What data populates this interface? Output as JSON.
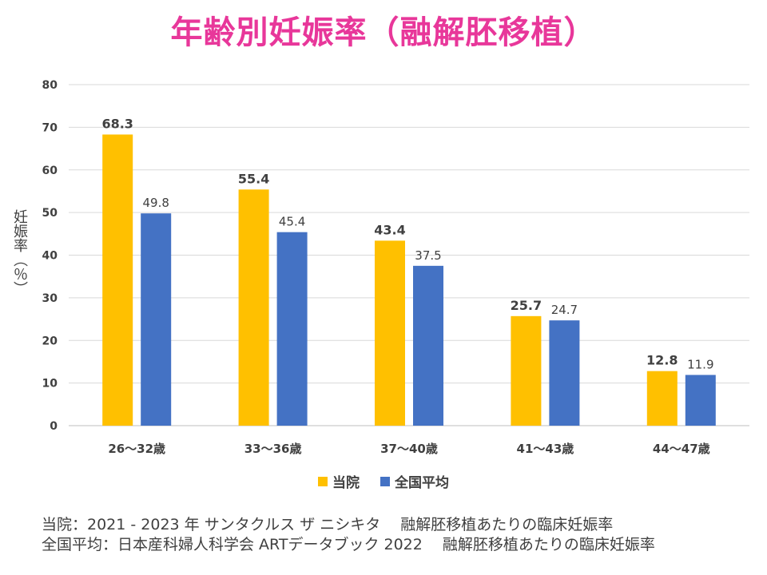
{
  "page": {
    "title": "年齢別妊娠率（融解胚移植）",
    "footnotes": [
      "当院：2021 - 2023 年 サンタクルス ザ ニシキタ　 融解胚移植あたりの臨床妊娠率",
      "全国平均：日本産科婦人科学会  ARTデータブック  2022　 融解胚移植あたりの臨床妊娠率"
    ]
  },
  "chart_data": {
    "type": "bar",
    "title": "年齢別妊娠率（融解胚移植）",
    "xlabel": "",
    "ylabel": "妊娠率（％）",
    "ylim": [
      0,
      80
    ],
    "yticks": [
      0,
      10,
      20,
      30,
      40,
      50,
      60,
      70,
      80
    ],
    "grid": true,
    "legend_position": "bottom",
    "categories": [
      "26〜32歳",
      "33〜36歳",
      "37〜40歳",
      "41〜43歳",
      "44〜47歳"
    ],
    "series": [
      {
        "name": "当院",
        "color": "#ffc000",
        "values": [
          68.3,
          55.4,
          43.4,
          25.7,
          12.8
        ],
        "label_bold": true
      },
      {
        "name": "全国平均",
        "color": "#4472c4",
        "values": [
          49.8,
          45.4,
          37.5,
          24.7,
          11.9
        ],
        "label_bold": false
      }
    ]
  }
}
